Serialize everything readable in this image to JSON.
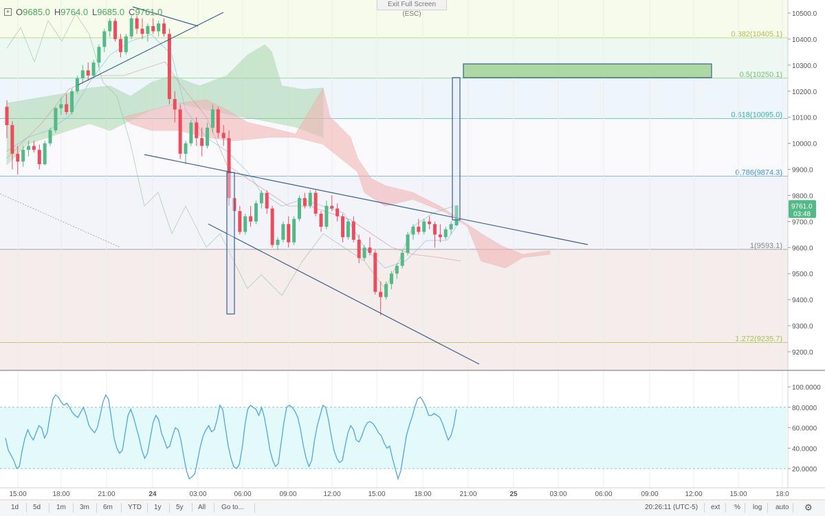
{
  "header": {
    "ohlc": [
      {
        "label": "O",
        "value": "9685.0"
      },
      {
        "label": "H",
        "value": "9764.0"
      },
      {
        "label": "L",
        "value": "9685.0"
      },
      {
        "label": "C",
        "value": "9761.0"
      }
    ],
    "exit_fullscreen": "Exit Full Screen (ESC)"
  },
  "colors": {
    "up": "#53b987",
    "down": "#eb4d5c",
    "trend": "#3c5f8a",
    "cloud_bull": "#9ed29f",
    "cloud_bear": "#f3b1b1",
    "osc": "#4ea6de",
    "osc_band": "#e4fafa"
  },
  "chart_data": [
    {
      "type": "candlestick",
      "title": "",
      "y_axis_ticks": [
        "10500.0",
        "10400.0",
        "10300.0",
        "10200.0",
        "10100.0",
        "10000.0",
        "9900.0",
        "9800.0",
        "9700.0",
        "9600.0",
        "9500.0",
        "9400.0",
        "9300.0",
        "9200.0"
      ],
      "ylim": [
        9140,
        10540
      ],
      "x_axis_ticks": [
        "15:00",
        "18:00",
        "21:00",
        "24",
        "03:00",
        "06:00",
        "09:00",
        "12:00",
        "15:00",
        "18:00",
        "21:00",
        "25",
        "03:00",
        "06:00",
        "09:00",
        "12:00",
        "15:00",
        "18:0"
      ],
      "last_price": "9761.0",
      "countdown": "03:48",
      "fib_levels": [
        {
          "label": "0.382(10405.1)",
          "value": 10405.1,
          "color": "#a9c14d",
          "fill": "#f7fbec"
        },
        {
          "label": "0.5(10250.1)",
          "value": 10250.1,
          "color": "#6fbf6f",
          "fill": "#eef8f3"
        },
        {
          "label": "0.618(10095.0)",
          "value": 10095.0,
          "color": "#2fb59a",
          "fill": "#eef5fb"
        },
        {
          "label": "0.786(9874.3)",
          "value": 9874.3,
          "color": "#3a96c9",
          "fill": "#f9f9fb"
        },
        {
          "label": "1(9593.1)",
          "value": 9593.1,
          "color": "#888888",
          "fill": "#f3f3fa"
        },
        {
          "label": "1.272(9235.7)",
          "value": 9235.7,
          "color": "#a9c14d",
          "fill": "#f5ecec"
        }
      ],
      "candles": [
        {
          "o": 10140,
          "h": 10165,
          "l": 10020,
          "c": 10070
        },
        {
          "o": 10070,
          "h": 10085,
          "l": 9900,
          "c": 9960
        },
        {
          "o": 9960,
          "h": 9990,
          "l": 9880,
          "c": 9930
        },
        {
          "o": 9930,
          "h": 9990,
          "l": 9910,
          "c": 9975
        },
        {
          "o": 9975,
          "h": 10010,
          "l": 9950,
          "c": 9990
        },
        {
          "o": 9990,
          "h": 10010,
          "l": 9965,
          "c": 9975
        },
        {
          "o": 9975,
          "h": 9995,
          "l": 9900,
          "c": 9920
        },
        {
          "o": 9920,
          "h": 10010,
          "l": 9915,
          "c": 10000
        },
        {
          "o": 10000,
          "h": 10060,
          "l": 9990,
          "c": 10050
        },
        {
          "o": 10050,
          "h": 10140,
          "l": 10040,
          "c": 10135
        },
        {
          "o": 10135,
          "h": 10175,
          "l": 10110,
          "c": 10150
        },
        {
          "o": 10150,
          "h": 10190,
          "l": 10110,
          "c": 10120
        },
        {
          "o": 10120,
          "h": 10210,
          "l": 10110,
          "c": 10200
        },
        {
          "o": 10200,
          "h": 10260,
          "l": 10190,
          "c": 10250
        },
        {
          "o": 10250,
          "h": 10300,
          "l": 10230,
          "c": 10280
        },
        {
          "o": 10280,
          "h": 10310,
          "l": 10240,
          "c": 10260
        },
        {
          "o": 10260,
          "h": 10320,
          "l": 10250,
          "c": 10310
        },
        {
          "o": 10310,
          "h": 10380,
          "l": 10290,
          "c": 10370
        },
        {
          "o": 10370,
          "h": 10440,
          "l": 10350,
          "c": 10430
        },
        {
          "o": 10430,
          "h": 10480,
          "l": 10410,
          "c": 10470
        },
        {
          "o": 10470,
          "h": 10480,
          "l": 10390,
          "c": 10400
        },
        {
          "o": 10400,
          "h": 10420,
          "l": 10330,
          "c": 10350
        },
        {
          "o": 10350,
          "h": 10420,
          "l": 10340,
          "c": 10410
        },
        {
          "o": 10410,
          "h": 10490,
          "l": 10400,
          "c": 10480
        },
        {
          "o": 10480,
          "h": 10490,
          "l": 10420,
          "c": 10440
        },
        {
          "o": 10440,
          "h": 10480,
          "l": 10400,
          "c": 10420
        },
        {
          "o": 10420,
          "h": 10460,
          "l": 10390,
          "c": 10450
        },
        {
          "o": 10450,
          "h": 10480,
          "l": 10420,
          "c": 10430
        },
        {
          "o": 10430,
          "h": 10470,
          "l": 10410,
          "c": 10460
        },
        {
          "o": 10460,
          "h": 10480,
          "l": 10410,
          "c": 10420
        },
        {
          "o": 10420,
          "h": 10440,
          "l": 10150,
          "c": 10170
        },
        {
          "o": 10170,
          "h": 10200,
          "l": 10080,
          "c": 10130
        },
        {
          "o": 10130,
          "h": 10150,
          "l": 9940,
          "c": 9960
        },
        {
          "o": 9960,
          "h": 10010,
          "l": 9920,
          "c": 10000
        },
        {
          "o": 10000,
          "h": 10090,
          "l": 9990,
          "c": 10080
        },
        {
          "o": 10080,
          "h": 10100,
          "l": 9990,
          "c": 10020
        },
        {
          "o": 10020,
          "h": 10060,
          "l": 9950,
          "c": 9990
        },
        {
          "o": 9990,
          "h": 10080,
          "l": 9980,
          "c": 10060
        },
        {
          "o": 10060,
          "h": 10150,
          "l": 10040,
          "c": 10130
        },
        {
          "o": 10130,
          "h": 10140,
          "l": 10020,
          "c": 10040
        },
        {
          "o": 10040,
          "h": 10070,
          "l": 9990,
          "c": 10020
        },
        {
          "o": 10020,
          "h": 10050,
          "l": 9760,
          "c": 9790
        },
        {
          "o": 9790,
          "h": 9800,
          "l": 9720,
          "c": 9740
        },
        {
          "o": 9740,
          "h": 9760,
          "l": 9650,
          "c": 9660
        },
        {
          "o": 9660,
          "h": 9730,
          "l": 9650,
          "c": 9720
        },
        {
          "o": 9720,
          "h": 9760,
          "l": 9680,
          "c": 9700
        },
        {
          "o": 9700,
          "h": 9780,
          "l": 9690,
          "c": 9770
        },
        {
          "o": 9770,
          "h": 9820,
          "l": 9750,
          "c": 9810
        },
        {
          "o": 9810,
          "h": 9820,
          "l": 9730,
          "c": 9750
        },
        {
          "o": 9750,
          "h": 9760,
          "l": 9600,
          "c": 9610
        },
        {
          "o": 9610,
          "h": 9640,
          "l": 9590,
          "c": 9630
        },
        {
          "o": 9630,
          "h": 9700,
          "l": 9620,
          "c": 9690
        },
        {
          "o": 9690,
          "h": 9720,
          "l": 9600,
          "c": 9620
        },
        {
          "o": 9620,
          "h": 9720,
          "l": 9610,
          "c": 9710
        },
        {
          "o": 9710,
          "h": 9800,
          "l": 9700,
          "c": 9790
        },
        {
          "o": 9790,
          "h": 9810,
          "l": 9750,
          "c": 9760
        },
        {
          "o": 9760,
          "h": 9820,
          "l": 9750,
          "c": 9810
        },
        {
          "o": 9810,
          "h": 9820,
          "l": 9720,
          "c": 9730
        },
        {
          "o": 9730,
          "h": 9740,
          "l": 9660,
          "c": 9680
        },
        {
          "o": 9680,
          "h": 9780,
          "l": 9670,
          "c": 9760
        },
        {
          "o": 9760,
          "h": 9800,
          "l": 9740,
          "c": 9750
        },
        {
          "o": 9750,
          "h": 9770,
          "l": 9700,
          "c": 9720
        },
        {
          "o": 9720,
          "h": 9730,
          "l": 9620,
          "c": 9640
        },
        {
          "o": 9640,
          "h": 9710,
          "l": 9630,
          "c": 9700
        },
        {
          "o": 9700,
          "h": 9720,
          "l": 9620,
          "c": 9630
        },
        {
          "o": 9630,
          "h": 9650,
          "l": 9540,
          "c": 9560
        },
        {
          "o": 9560,
          "h": 9610,
          "l": 9550,
          "c": 9600
        },
        {
          "o": 9600,
          "h": 9640,
          "l": 9570,
          "c": 9580
        },
        {
          "o": 9580,
          "h": 9590,
          "l": 9420,
          "c": 9430
        },
        {
          "o": 9430,
          "h": 9470,
          "l": 9340,
          "c": 9410
        },
        {
          "o": 9410,
          "h": 9470,
          "l": 9400,
          "c": 9460
        },
        {
          "o": 9460,
          "h": 9510,
          "l": 9440,
          "c": 9500
        },
        {
          "o": 9500,
          "h": 9540,
          "l": 9480,
          "c": 9530
        },
        {
          "o": 9530,
          "h": 9590,
          "l": 9520,
          "c": 9580
        },
        {
          "o": 9580,
          "h": 9660,
          "l": 9570,
          "c": 9650
        },
        {
          "o": 9650,
          "h": 9690,
          "l": 9630,
          "c": 9680
        },
        {
          "o": 9680,
          "h": 9710,
          "l": 9650,
          "c": 9660
        },
        {
          "o": 9660,
          "h": 9710,
          "l": 9650,
          "c": 9700
        },
        {
          "o": 9700,
          "h": 9720,
          "l": 9670,
          "c": 9690
        },
        {
          "o": 9690,
          "h": 9700,
          "l": 9600,
          "c": 9650
        },
        {
          "o": 9650,
          "h": 9690,
          "l": 9620,
          "c": 9640
        },
        {
          "o": 9640,
          "h": 9680,
          "l": 9630,
          "c": 9670
        },
        {
          "o": 9670,
          "h": 9700,
          "l": 9650,
          "c": 9690
        },
        {
          "o": 9685,
          "h": 9764,
          "l": 9685,
          "c": 9761
        }
      ]
    },
    {
      "type": "line",
      "title": "",
      "y_axis_ticks": [
        "100.0000",
        "80.0000",
        "60.0000",
        "40.0000",
        "20.0000"
      ],
      "ylim": [
        0,
        110
      ],
      "bands": [
        20,
        80
      ],
      "values": [
        50,
        38,
        33,
        28,
        20,
        22,
        38,
        50,
        58,
        52,
        48,
        55,
        62,
        60,
        50,
        55,
        72,
        88,
        92,
        90,
        85,
        82,
        84,
        80,
        75,
        72,
        70,
        75,
        80,
        72,
        62,
        58,
        55,
        60,
        72,
        85,
        92,
        88,
        70,
        50,
        40,
        35,
        38,
        55,
        72,
        78,
        70,
        60,
        50,
        38,
        30,
        35,
        50,
        65,
        72,
        68,
        55,
        48,
        40,
        42,
        52,
        60,
        58,
        48,
        32,
        18,
        10,
        12,
        15,
        28,
        42,
        52,
        58,
        62,
        56,
        58,
        68,
        82,
        78,
        60,
        42,
        30,
        22,
        20,
        24,
        40,
        62,
        78,
        82,
        80,
        78,
        72,
        80,
        70,
        55,
        38,
        28,
        22,
        25,
        45,
        65,
        80,
        82,
        80,
        76,
        70,
        58,
        42,
        30,
        22,
        28,
        48,
        62,
        72,
        82,
        80,
        68,
        52,
        38,
        30,
        26,
        28,
        42,
        55,
        62,
        58,
        48,
        46,
        52,
        60,
        65,
        66,
        64,
        60,
        55,
        52,
        45,
        40,
        42,
        30,
        20,
        10,
        18,
        35,
        52,
        62,
        70,
        80,
        88,
        90,
        86,
        80,
        72,
        72,
        74,
        72,
        70,
        64,
        56,
        48,
        52,
        62,
        78
      ]
    }
  ],
  "toolbar": {
    "ranges": [
      "1d",
      "5d",
      "1m",
      "3m",
      "6m",
      "YTD",
      "1y",
      "5y",
      "All"
    ],
    "goto": "Go to...",
    "clock": "20:26:11 (UTC-5)",
    "right": [
      "ext",
      "%",
      "log",
      "auto"
    ]
  }
}
